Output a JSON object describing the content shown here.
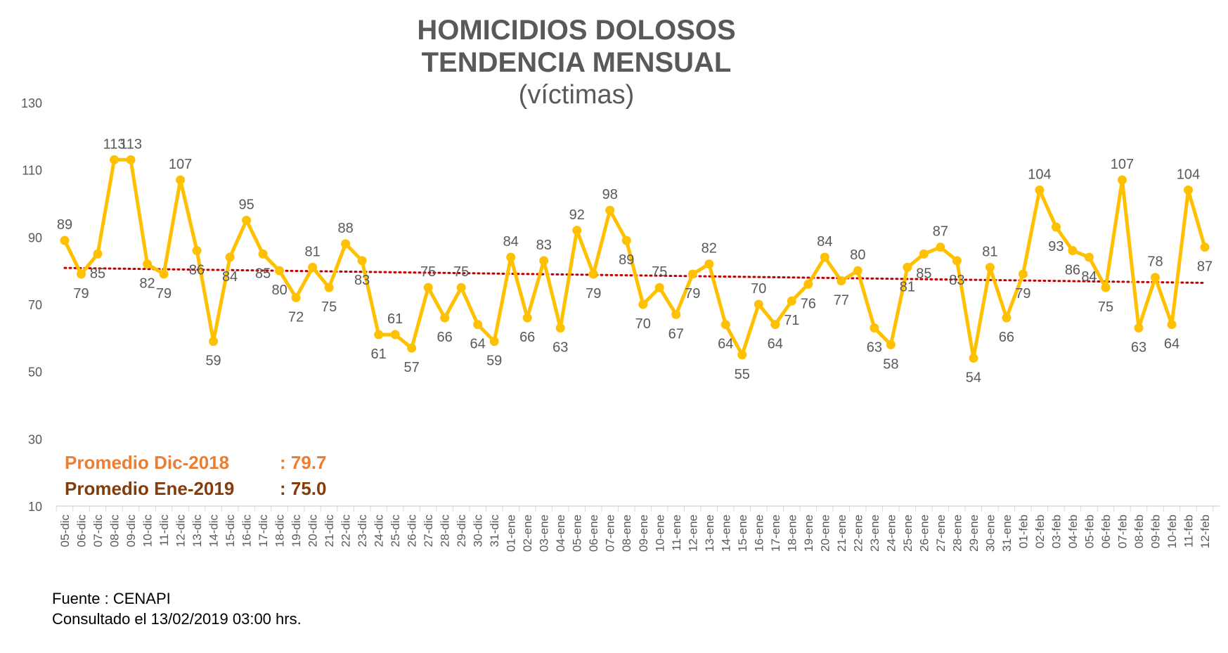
{
  "colors": {
    "line": "#FFC000",
    "trend": "#C00000",
    "avg_dic": "#ED7D31",
    "avg_ene": "#843C0C",
    "text": "#595959",
    "axis": "#D9D9D9"
  },
  "footer": {
    "source": "Fuente : CENAPI",
    "consulted": "Consultado el 13/02/2019  03:00 hrs."
  },
  "chart_data": {
    "type": "line",
    "title": "HOMICIDIOS DOLOSOS",
    "title_line2": "TENDENCIA MENSUAL",
    "subtitle": "(víctimas)",
    "xlabel": "",
    "ylabel": "",
    "ylim": [
      10,
      130
    ],
    "yticks": [
      10,
      30,
      50,
      70,
      90,
      110,
      130
    ],
    "grid": false,
    "trendline": {
      "type": "linear",
      "style": "dotted"
    },
    "categories": [
      "05-dic",
      "06-dic",
      "07-dic",
      "08-dic",
      "09-dic",
      "10-dic",
      "11-dic",
      "12-dic",
      "13-dic",
      "14-dic",
      "15-dic",
      "16-dic",
      "17-dic",
      "18-dic",
      "19-dic",
      "20-dic",
      "21-dic",
      "22-dic",
      "23-dic",
      "24-dic",
      "25-dic",
      "26-dic",
      "27-dic",
      "28-dic",
      "29-dic",
      "30-dic",
      "31-dic",
      "01-ene",
      "02-ene",
      "03-ene",
      "04-ene",
      "05-ene",
      "06-ene",
      "07-ene",
      "08-ene",
      "09-ene",
      "10-ene",
      "11-ene",
      "12-ene",
      "13-ene",
      "14-ene",
      "15-ene",
      "16-ene",
      "17-ene",
      "18-ene",
      "19-ene",
      "20-ene",
      "21-ene",
      "22-ene",
      "23-ene",
      "24-ene",
      "25-ene",
      "26-ene",
      "27-ene",
      "28-ene",
      "29-ene",
      "30-ene",
      "31-ene",
      "01-feb",
      "02-feb",
      "03-feb",
      "04-feb",
      "05-feb",
      "06-feb",
      "07-feb",
      "08-feb",
      "09-feb",
      "10-feb",
      "11-feb",
      "12-feb"
    ],
    "series": [
      {
        "values": [
          89,
          79,
          85,
          113,
          113,
          82,
          79,
          107,
          86,
          59,
          84,
          95,
          85,
          80,
          72,
          81,
          75,
          88,
          83,
          61,
          61,
          57,
          75,
          66,
          75,
          64,
          59,
          84,
          66,
          83,
          63,
          92,
          79,
          98,
          89,
          70,
          75,
          67,
          79,
          82,
          64,
          55,
          70,
          64,
          71,
          76,
          84,
          77,
          80,
          63,
          58,
          81,
          85,
          87,
          83,
          54,
          81,
          66,
          79,
          104,
          93,
          86,
          84,
          75,
          107,
          63,
          78,
          64,
          104,
          87
        ]
      }
    ],
    "annotations": [
      {
        "label": "Promedio  Dic-2018",
        "value": ": 79.7"
      },
      {
        "label": "Promedio  Ene-2019",
        "value": ": 75.0"
      }
    ]
  }
}
